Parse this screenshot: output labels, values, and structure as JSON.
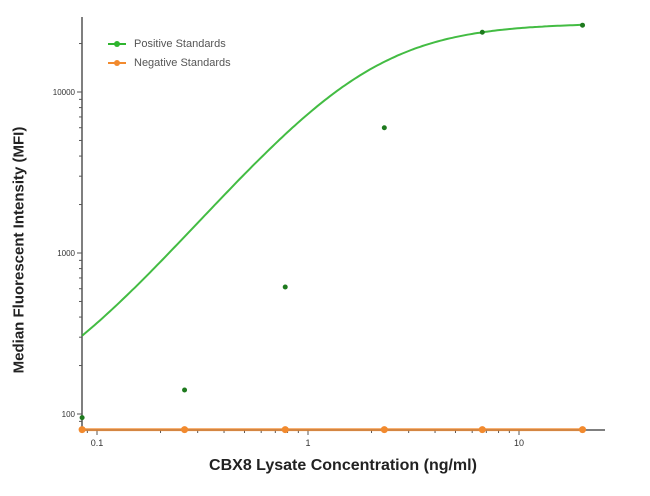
{
  "chart_data": {
    "type": "line",
    "title": "",
    "xlabel": "CBX8 Lysate Concentration (ng/ml)",
    "ylabel": "Median  Fluorescent Intensity  (MFI)",
    "xscale": "log",
    "yscale": "log",
    "xlim": [
      0.085,
      25
    ],
    "ylim": [
      75,
      30000
    ],
    "x_ticks": [
      {
        "value": 0.1,
        "label": "0.1"
      },
      {
        "value": 1,
        "label": "1"
      },
      {
        "value": 10,
        "label": "10"
      }
    ],
    "y_ticks": [
      {
        "value": 100,
        "label": "100"
      },
      {
        "value": 1000,
        "label": "1000"
      },
      {
        "value": 10000,
        "label": "10000"
      }
    ],
    "grid": false,
    "legend_position": "upper left",
    "series": [
      {
        "name": "Positive Standards",
        "color": "#2fb52f",
        "x": [
          0.085,
          0.26,
          0.78,
          2.3,
          6.7,
          20
        ],
        "values": [
          95,
          141,
          615,
          6000,
          23500,
          26000
        ]
      },
      {
        "name": "Negative Standards",
        "color": "#f28a2e",
        "x": [
          0.085,
          0.26,
          0.78,
          2.3,
          6.7,
          20
        ],
        "values": [
          80,
          80,
          80,
          80,
          80,
          80
        ]
      }
    ]
  },
  "legend": {
    "items": [
      {
        "label": "Positive Standards",
        "color": "#2fb52f"
      },
      {
        "label": "Negative Standards",
        "color": "#f28a2e"
      }
    ]
  }
}
